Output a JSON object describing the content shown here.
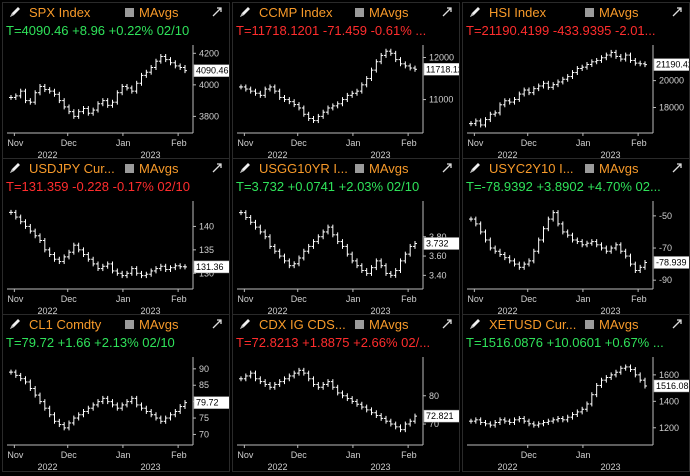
{
  "ma_label": "MAvgs",
  "colors": {
    "title": "#f79a2a",
    "up": "#2fe25a",
    "down": "#ff2d2d",
    "bars": "#ffffff"
  },
  "panels": [
    {
      "title": "SPX Index",
      "stats": "T=4090.46 +8.96 +0.22% 02/10",
      "dir": "up",
      "y_ticks": [
        {
          "v": 3800,
          "label": "3800"
        },
        {
          "v": 4000,
          "label": "4000"
        },
        {
          "v": 4200,
          "label": "4200"
        }
      ],
      "last": "4090.46",
      "ylim": [
        3720,
        4240
      ],
      "x_ticks": [
        {
          "t": 0.04,
          "label": "Nov"
        },
        {
          "t": 0.33,
          "label": "Dec"
        },
        {
          "t": 0.63,
          "label": "Jan"
        },
        {
          "t": 0.93,
          "label": "Feb"
        }
      ],
      "years": [
        {
          "t": 0.22,
          "label": "2022"
        },
        {
          "t": 0.78,
          "label": "2023"
        }
      ],
      "series": [
        3920,
        3930,
        3960,
        3900,
        3890,
        3950,
        3990,
        3970,
        3960,
        3940,
        3900,
        3860,
        3830,
        3800,
        3830,
        3850,
        3820,
        3840,
        3880,
        3900,
        3870,
        3890,
        3950,
        3990,
        3980,
        3960,
        4010,
        4060,
        4080,
        4110,
        4150,
        4180,
        4160,
        4140,
        4120,
        4110,
        4090
      ]
    },
    {
      "title": "CCMP Index",
      "stats": "T=11718.1201 -71.459 -0.61% ...",
      "dir": "down",
      "y_ticks": [
        {
          "v": 11000,
          "label": "11000"
        },
        {
          "v": 12000,
          "label": "12000"
        }
      ],
      "last": "11718.12",
      "ylim": [
        10300,
        12250
      ],
      "x_ticks": [
        {
          "t": 0.04,
          "label": "Nov"
        },
        {
          "t": 0.33,
          "label": "Dec"
        },
        {
          "t": 0.63,
          "label": "Jan"
        },
        {
          "t": 0.93,
          "label": "Feb"
        }
      ],
      "years": [
        {
          "t": 0.22,
          "label": "2022"
        },
        {
          "t": 0.78,
          "label": "2023"
        }
      ],
      "series": [
        11300,
        11250,
        11200,
        11150,
        11100,
        11250,
        11300,
        11200,
        11050,
        11000,
        10950,
        10880,
        10800,
        10650,
        10550,
        10500,
        10600,
        10700,
        10800,
        10850,
        10900,
        11000,
        11100,
        11150,
        11200,
        11350,
        11500,
        11700,
        11900,
        12050,
        12150,
        12100,
        11950,
        11850,
        11800,
        11750,
        11720
      ]
    },
    {
      "title": "HSI Index",
      "stats": "T=21190.4199 -433.9395 -2.01...",
      "dir": "down",
      "y_ticks": [
        {
          "v": 18000,
          "label": "18000"
        },
        {
          "v": 20000,
          "label": "20000"
        }
      ],
      "last": "21190.42",
      "ylim": [
        16400,
        22500
      ],
      "x_ticks": [
        {
          "t": 0.04,
          "label": "Nov"
        },
        {
          "t": 0.33,
          "label": "Dec"
        },
        {
          "t": 0.63,
          "label": "Jan"
        },
        {
          "t": 0.93,
          "label": "Feb"
        }
      ],
      "years": [
        {
          "t": 0.22,
          "label": "2022"
        },
        {
          "t": 0.78,
          "label": "2023"
        }
      ],
      "series": [
        16800,
        17000,
        16700,
        17100,
        17500,
        17600,
        18200,
        18500,
        18400,
        18600,
        19000,
        19300,
        19100,
        19400,
        19600,
        19800,
        19500,
        19700,
        19900,
        20100,
        20300,
        20600,
        20900,
        21000,
        21200,
        21400,
        21500,
        21700,
        21900,
        22100,
        21800,
        21600,
        21900,
        21500,
        21300,
        21250,
        21190
      ]
    },
    {
      "title": "USDJPY Cur...",
      "stats": "T=131.359 -0.228 -0.17% 02/10",
      "dir": "down",
      "y_ticks": [
        {
          "v": 130,
          "label": "130"
        },
        {
          "v": 135,
          "label": "135"
        },
        {
          "v": 140,
          "label": "140"
        }
      ],
      "last": "131.36",
      "ylim": [
        127.5,
        145
      ],
      "x_ticks": [
        {
          "t": 0.04,
          "label": "Nov"
        },
        {
          "t": 0.33,
          "label": "Dec"
        },
        {
          "t": 0.63,
          "label": "Jan"
        },
        {
          "t": 0.93,
          "label": "Feb"
        }
      ],
      "years": [
        {
          "t": 0.22,
          "label": "2022"
        },
        {
          "t": 0.78,
          "label": "2023"
        }
      ],
      "series": [
        143,
        142,
        141,
        140,
        139,
        138,
        137,
        135,
        134,
        133,
        132.5,
        133.5,
        134.5,
        136,
        135,
        134,
        133,
        132,
        131,
        131.5,
        132,
        130.5,
        130,
        129.5,
        130,
        131,
        130,
        129.5,
        129.8,
        130.5,
        131,
        131.5,
        130.8,
        131.2,
        131.6,
        131.4,
        131.36
      ]
    },
    {
      "title": "USGG10YR I...",
      "stats": "T=3.732 +0.0741 +2.03% 02/10",
      "dir": "up",
      "y_ticks": [
        {
          "v": 3.4,
          "label": "3.40"
        },
        {
          "v": 3.6,
          "label": "3.60"
        },
        {
          "v": 3.8,
          "label": "3.80"
        }
      ],
      "last": "3.732",
      "ylim": [
        3.3,
        4.15
      ],
      "x_ticks": [
        {
          "t": 0.04,
          "label": "Nov"
        },
        {
          "t": 0.33,
          "label": "Dec"
        },
        {
          "t": 0.63,
          "label": "Jan"
        },
        {
          "t": 0.93,
          "label": "Feb"
        }
      ],
      "years": [
        {
          "t": 0.22,
          "label": "2022"
        },
        {
          "t": 0.78,
          "label": "2023"
        }
      ],
      "series": [
        4.05,
        4.0,
        3.95,
        3.9,
        3.85,
        3.8,
        3.7,
        3.65,
        3.6,
        3.55,
        3.5,
        3.52,
        3.58,
        3.65,
        3.7,
        3.75,
        3.8,
        3.85,
        3.9,
        3.82,
        3.75,
        3.7,
        3.62,
        3.55,
        3.5,
        3.45,
        3.42,
        3.48,
        3.55,
        3.5,
        3.42,
        3.4,
        3.45,
        3.55,
        3.62,
        3.7,
        3.73
      ]
    },
    {
      "title": "USYC2Y10 I...",
      "stats": "T=-78.9392 +3.8902 +4.70% 02...",
      "dir": "up",
      "y_ticks": [
        {
          "v": -90,
          "label": "-90"
        },
        {
          "v": -70,
          "label": "-70"
        },
        {
          "v": -50,
          "label": "-50"
        }
      ],
      "last": "-78.939",
      "ylim": [
        -93,
        -42
      ],
      "x_ticks": [
        {
          "t": 0.04,
          "label": "Nov"
        },
        {
          "t": 0.33,
          "label": "Dec"
        },
        {
          "t": 0.63,
          "label": "Jan"
        },
        {
          "t": 0.93,
          "label": "Feb"
        }
      ],
      "years": [
        {
          "t": 0.22,
          "label": "2022"
        },
        {
          "t": 0.78,
          "label": "2023"
        }
      ],
      "series": [
        -52,
        -55,
        -60,
        -65,
        -70,
        -72,
        -74,
        -76,
        -78,
        -80,
        -82,
        -80,
        -78,
        -72,
        -65,
        -58,
        -52,
        -48,
        -55,
        -60,
        -62,
        -65,
        -66,
        -68,
        -67,
        -66,
        -68,
        -70,
        -72,
        -70,
        -68,
        -72,
        -75,
        -80,
        -84,
        -82,
        -79
      ]
    },
    {
      "title": "CL1 Comdty",
      "stats": "T=79.72 +1.66 +2.13% 02/10",
      "dir": "up",
      "y_ticks": [
        {
          "v": 70,
          "label": "70"
        },
        {
          "v": 75,
          "label": "75"
        },
        {
          "v": 80,
          "label": "80"
        },
        {
          "v": 85,
          "label": "85"
        },
        {
          "v": 90,
          "label": "90"
        }
      ],
      "last": "79.72",
      "ylim": [
        68,
        93
      ],
      "x_ticks": [
        {
          "t": 0.04,
          "label": "Nov"
        },
        {
          "t": 0.33,
          "label": "Dec"
        },
        {
          "t": 0.63,
          "label": "Jan"
        },
        {
          "t": 0.93,
          "label": "Feb"
        }
      ],
      "years": [
        {
          "t": 0.22,
          "label": "2022"
        },
        {
          "t": 0.78,
          "label": "2023"
        }
      ],
      "series": [
        89,
        88,
        87,
        86,
        84,
        82,
        80,
        78,
        76,
        74,
        73,
        72,
        73.5,
        75,
        76,
        77,
        78,
        79,
        80,
        81,
        80,
        79,
        78,
        79,
        80,
        81,
        79,
        78,
        77,
        76,
        75,
        74,
        75,
        76,
        77,
        78.5,
        79.7
      ]
    },
    {
      "title": "CDX IG CDS...",
      "stats": "T=72.8213 +1.8875 +2.66% 02/...",
      "dir": "down",
      "y_ticks": [
        {
          "v": 70,
          "label": "70"
        },
        {
          "v": 80,
          "label": "80"
        }
      ],
      "last": "72.821",
      "ylim": [
        64,
        93
      ],
      "x_ticks": [
        {
          "t": 0.04,
          "label": "Nov"
        },
        {
          "t": 0.33,
          "label": "Dec"
        },
        {
          "t": 0.63,
          "label": "Jan"
        },
        {
          "t": 0.93,
          "label": "Feb"
        }
      ],
      "years": [
        {
          "t": 0.22,
          "label": "2022"
        },
        {
          "t": 0.78,
          "label": "2023"
        }
      ],
      "series": [
        86,
        87,
        88,
        86,
        85,
        84,
        83,
        84,
        85,
        86,
        87,
        88,
        89,
        88,
        86,
        84,
        83,
        84,
        85,
        83,
        81,
        80,
        79,
        78,
        77,
        76,
        75,
        74,
        73,
        72,
        71,
        70,
        69,
        68,
        70,
        71,
        72.8
      ]
    },
    {
      "title": "XETUSD Cur...",
      "stats": "T=1516.0876 +10.0601 +0.67% ...",
      "dir": "up",
      "y_ticks": [
        {
          "v": 1200,
          "label": "1200"
        },
        {
          "v": 1400,
          "label": "1400"
        },
        {
          "v": 1600,
          "label": "1600"
        }
      ],
      "last": "1516.088",
      "ylim": [
        1100,
        1720
      ],
      "x_ticks": [
        {
          "t": 0.33,
          "label": "Dec"
        },
        {
          "t": 0.63,
          "label": "Jan"
        }
      ],
      "years": [
        {
          "t": 0.22,
          "label": "2022"
        },
        {
          "t": 0.78,
          "label": "2023"
        }
      ],
      "series": [
        1250,
        1260,
        1240,
        1230,
        1220,
        1240,
        1260,
        1250,
        1240,
        1260,
        1270,
        1250,
        1230,
        1220,
        1230,
        1240,
        1250,
        1260,
        1270,
        1260,
        1280,
        1300,
        1320,
        1340,
        1380,
        1450,
        1520,
        1560,
        1580,
        1600,
        1620,
        1650,
        1660,
        1640,
        1600,
        1560,
        1516
      ]
    }
  ]
}
